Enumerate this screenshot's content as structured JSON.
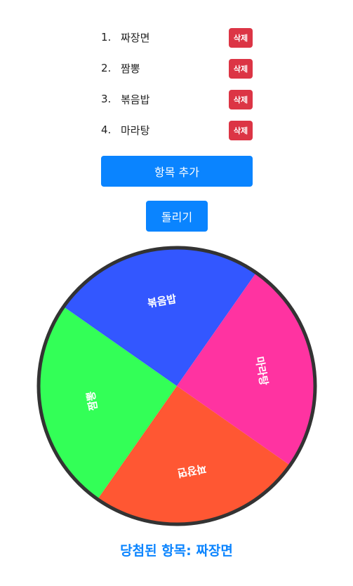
{
  "items": [
    {
      "number": "1.",
      "name": "짜장면",
      "delete_label": "삭제"
    },
    {
      "number": "2.",
      "name": "짬뽕",
      "delete_label": "삭제"
    },
    {
      "number": "3.",
      "name": "볶음밥",
      "delete_label": "삭제"
    },
    {
      "number": "4.",
      "name": "마라탕",
      "delete_label": "삭제"
    }
  ],
  "add_button_label": "항목 추가",
  "spin_button_label": "돌리기",
  "wheel": {
    "border_color": "#333333",
    "label_color": "#ffffff",
    "segments": [
      {
        "label": "짜장면",
        "color": "#ff5733"
      },
      {
        "label": "짬뽕",
        "color": "#33ff57"
      },
      {
        "label": "볶음밥",
        "color": "#3357ff"
      },
      {
        "label": "마라탕",
        "color": "#ff33a1"
      }
    ]
  },
  "result_text": "당첨된 항목: 짜장면",
  "colors": {
    "primary": "#0a84ff",
    "danger": "#dc3545"
  }
}
